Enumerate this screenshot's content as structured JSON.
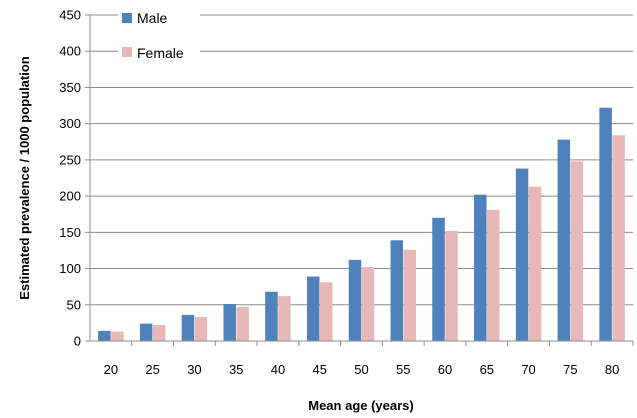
{
  "chart_data": {
    "type": "bar",
    "title": "",
    "xlabel": "Mean age  (years)",
    "ylabel": "Estimated prevalence / 1000 population",
    "ylim": [
      0,
      450
    ],
    "yticks": [
      0,
      50,
      100,
      150,
      200,
      250,
      300,
      350,
      400,
      450
    ],
    "categories": [
      "20",
      "25",
      "30",
      "35",
      "40",
      "45",
      "50",
      "55",
      "60",
      "65",
      "70",
      "75",
      "80"
    ],
    "series": [
      {
        "name": "Male",
        "color": "#4f81bd",
        "values": [
          14,
          24,
          36,
          51,
          68,
          89,
          112,
          139,
          170,
          202,
          238,
          278,
          322
        ]
      },
      {
        "name": "Female",
        "color": "#e6b9b8",
        "values": [
          13,
          22,
          33,
          47,
          62,
          81,
          102,
          126,
          152,
          181,
          213,
          248,
          284
        ]
      }
    ],
    "grid": "horizontal",
    "legend": "top-left"
  }
}
